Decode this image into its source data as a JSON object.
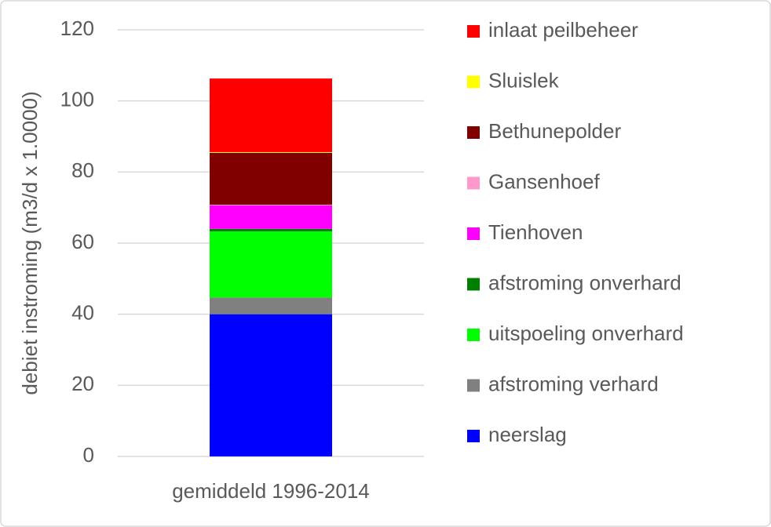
{
  "chart_data": {
    "type": "stacked-bar",
    "categories": [
      "gemiddeld 1996-2014"
    ],
    "y_label": "debiet instroming (m3/d x 1.0000)",
    "ylim": [
      0,
      120
    ],
    "yticks": [
      0,
      20,
      40,
      60,
      80,
      100,
      120
    ],
    "grid": true,
    "series": [
      {
        "name": "neerslag",
        "color": "#0000ff",
        "values": [
          40
        ]
      },
      {
        "name": "afstroming verhard",
        "color": "#808080",
        "values": [
          4.7
        ]
      },
      {
        "name": "uitspoeling onverhard",
        "color": "#00ff00",
        "values": [
          18.6
        ]
      },
      {
        "name": "afstroming onverhard",
        "color": "#008000",
        "values": [
          0.7
        ]
      },
      {
        "name": "Tienhoven",
        "color": "#ff00ff",
        "values": [
          6.6
        ]
      },
      {
        "name": "Gansenhoef",
        "color": "#ff99cc",
        "values": [
          0.2
        ]
      },
      {
        "name": "Bethunepolder",
        "color": "#800000",
        "values": [
          14.6
        ]
      },
      {
        "name": "Sluislek",
        "color": "#ffff00",
        "values": [
          0.2
        ]
      },
      {
        "name": "inlaat peilbeheer",
        "color": "#ff0000",
        "values": [
          20.7
        ]
      }
    ]
  }
}
